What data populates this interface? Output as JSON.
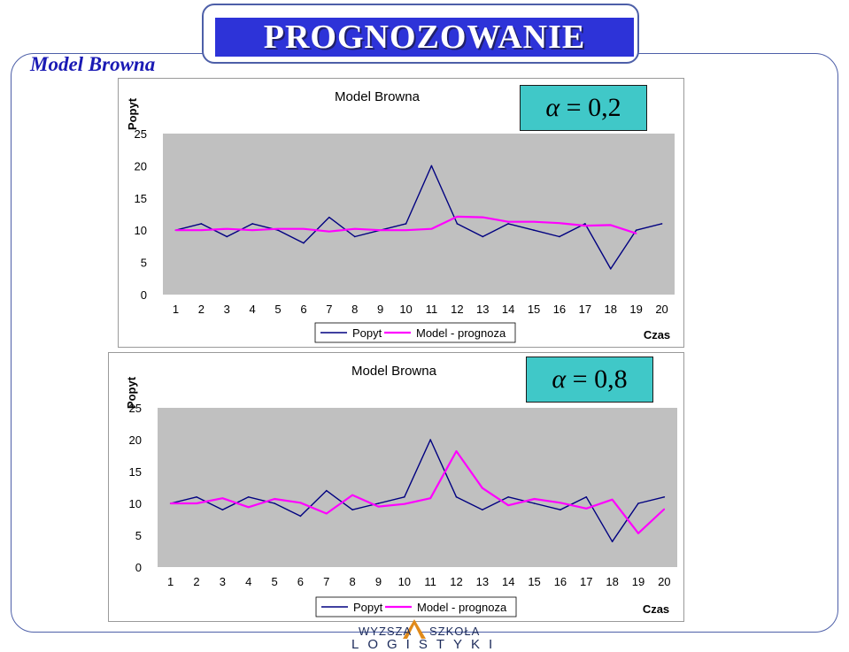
{
  "slide": {
    "title": "PROGNOZOWANIE",
    "subtitle": "Model Browna"
  },
  "logo": {
    "line1_left": "WYZSZA",
    "line1_right": "SZKOŁA",
    "line2": "LOGISTYKI"
  },
  "colors": {
    "banner": "#2d33d8",
    "demand": "#000080",
    "forecast": "#ff00ff",
    "plot_bg": "#c0c0c0",
    "alpha_bg": "#40c8c8"
  },
  "chart_data": [
    {
      "type": "line",
      "title": "Model Browna",
      "ylabel": "Popyt",
      "xlabel": "Czas",
      "alpha_label": "α = 0,2",
      "alpha_symbol": "α",
      "alpha_eq": "= 0,2",
      "categories": [
        "1",
        "2",
        "3",
        "4",
        "5",
        "6",
        "7",
        "8",
        "9",
        "10",
        "11",
        "12",
        "13",
        "14",
        "15",
        "16",
        "17",
        "18",
        "19",
        "20"
      ],
      "ylim": [
        0,
        25
      ],
      "yticks": [
        "0",
        "5",
        "10",
        "15",
        "20",
        "25"
      ],
      "grid": false,
      "legend_position": "bottom",
      "series": [
        {
          "name": "Popyt",
          "color": "#000080",
          "values": [
            10,
            11,
            9,
            11,
            10,
            8,
            12,
            9,
            10,
            11,
            20,
            11,
            9,
            11,
            10,
            9,
            11,
            4,
            10,
            11
          ]
        },
        {
          "name": "Model - prognoza",
          "color": "#ff00ff",
          "values": [
            10,
            10,
            10.2,
            10,
            10.2,
            10.2,
            9.8,
            10.2,
            10,
            10,
            10.2,
            12.1,
            12,
            11.3,
            11.3,
            11.1,
            10.7,
            10.8,
            9.5,
            null
          ]
        }
      ]
    },
    {
      "type": "line",
      "title": "Model Browna",
      "ylabel": "Popyt",
      "xlabel": "Czas",
      "alpha_label": "α = 0,8",
      "alpha_symbol": "α",
      "alpha_eq": "= 0,8",
      "categories": [
        "1",
        "2",
        "3",
        "4",
        "5",
        "6",
        "7",
        "8",
        "9",
        "10",
        "11",
        "12",
        "13",
        "14",
        "15",
        "16",
        "17",
        "18",
        "19",
        "20"
      ],
      "ylim": [
        0,
        25
      ],
      "yticks": [
        "0",
        "5",
        "10",
        "15",
        "20",
        "25"
      ],
      "grid": false,
      "legend_position": "bottom",
      "series": [
        {
          "name": "Popyt",
          "color": "#000080",
          "values": [
            10,
            11,
            9,
            11,
            10,
            8,
            12,
            9,
            10,
            11,
            20,
            11,
            9,
            11,
            10,
            9,
            11,
            4,
            10,
            11
          ]
        },
        {
          "name": "Model - prognoza",
          "color": "#ff00ff",
          "values": [
            10,
            10,
            10.8,
            9.4,
            10.7,
            10.1,
            8.4,
            11.3,
            9.5,
            9.9,
            10.8,
            18.2,
            12.4,
            9.7,
            10.7,
            10.1,
            9.2,
            10.6,
            5.3,
            9.1
          ]
        }
      ]
    }
  ]
}
